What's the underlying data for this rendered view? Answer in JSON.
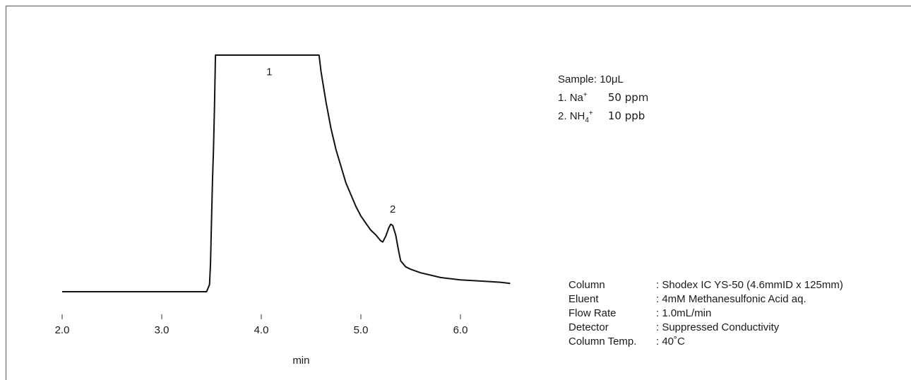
{
  "chart_data": {
    "type": "line",
    "xlabel": "min",
    "ylabel": "",
    "xlim": [
      2.0,
      6.5
    ],
    "x_ticks": [
      "2.0",
      "3.0",
      "4.0",
      "5.0",
      "6.0"
    ],
    "y_scale": "detector response, arbitrary units (0 = baseline, 1 = off-scale top)",
    "series": [
      {
        "x": [
          2.0,
          2.5,
          3.0,
          3.3,
          3.45,
          3.48,
          3.49,
          3.5,
          3.51,
          3.52,
          3.53,
          3.54,
          4.58,
          4.6,
          4.65,
          4.7,
          4.75,
          4.8,
          4.85,
          4.9,
          4.95,
          5.0,
          5.05,
          5.1,
          5.15,
          5.2,
          5.22,
          5.25,
          5.28,
          5.3,
          5.32,
          5.35,
          5.38,
          5.4,
          5.45,
          5.5,
          5.6,
          5.8,
          6.0,
          6.2,
          6.4,
          6.5
        ],
        "y": [
          0.0,
          0.0,
          0.0,
          0.0,
          0.0,
          0.03,
          0.12,
          0.3,
          0.47,
          0.6,
          0.78,
          1.0,
          1.0,
          0.93,
          0.8,
          0.69,
          0.6,
          0.53,
          0.46,
          0.41,
          0.36,
          0.32,
          0.29,
          0.26,
          0.24,
          0.215,
          0.21,
          0.235,
          0.27,
          0.285,
          0.28,
          0.24,
          0.17,
          0.13,
          0.105,
          0.095,
          0.08,
          0.06,
          0.05,
          0.045,
          0.04,
          0.035
        ]
      }
    ],
    "peaks": [
      {
        "label": "1",
        "x": 4.08,
        "y": 0.93
      },
      {
        "label": "2",
        "x": 5.32,
        "y": 0.35
      }
    ]
  },
  "sample": {
    "title": "Sample: 10μL",
    "items": [
      {
        "num": "1.",
        "name": "Na",
        "sub": "",
        "sup": "+",
        "amount": "50 ppm"
      },
      {
        "num": "2.",
        "name": "NH",
        "sub": "4",
        "sup": "+",
        "amount": "10 ppb"
      }
    ]
  },
  "conditions": [
    {
      "key": "Column",
      "value": ": Shodex IC YS-50 (4.6mmID x 125mm)"
    },
    {
      "key": "Eluent",
      "value": ": 4mM Methanesulfonic Acid aq."
    },
    {
      "key": "Flow Rate",
      "value": ": 1.0mL/min"
    },
    {
      "key": "Detector",
      "value": ": Suppressed Conductivity"
    },
    {
      "key": "Column Temp.",
      "value": ": 40˚C"
    }
  ]
}
